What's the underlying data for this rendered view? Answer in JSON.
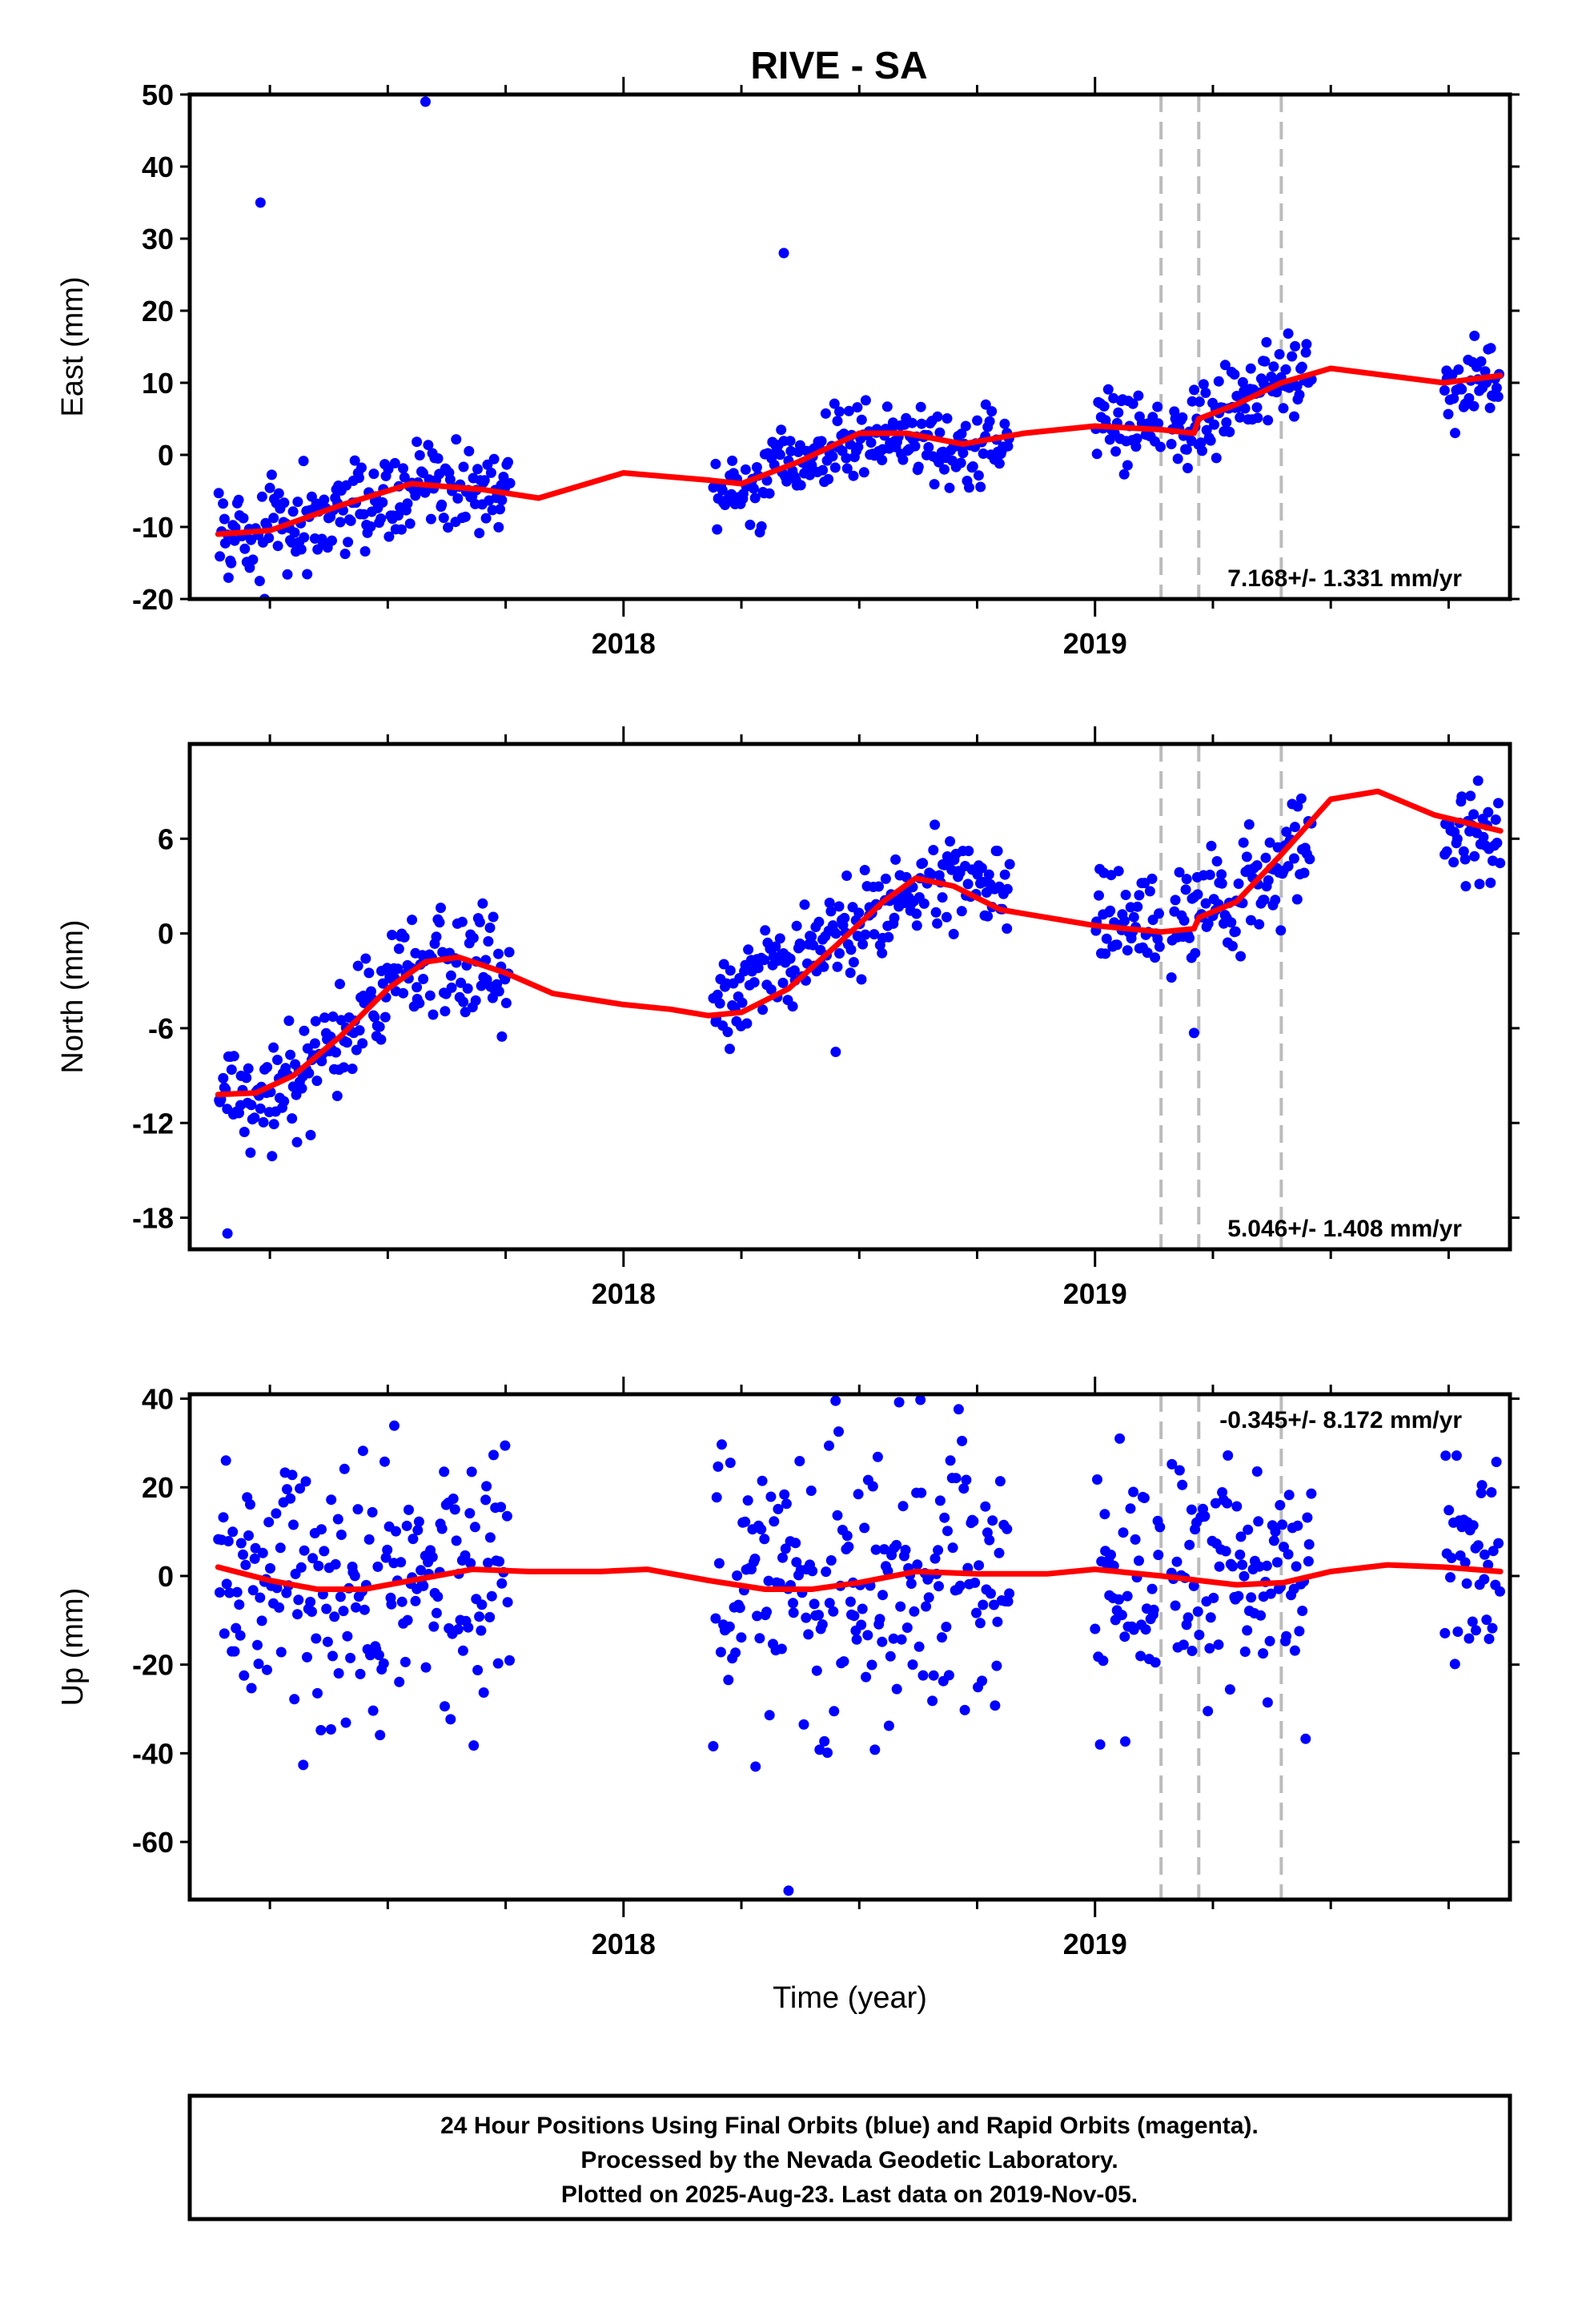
{
  "title": "RIVE - SA",
  "footer": {
    "line1": "24 Hour Positions Using Final Orbits (blue) and Rapid Orbits (magenta).",
    "line2": "Processed by the Nevada Geodetic Laboratory.",
    "line3": "Plotted on 2025-Aug-23. Last data on 2019-Nov-05."
  },
  "colors": {
    "points": "#0000ff",
    "fit": "#ff0000",
    "breaks": "#bbbbbb",
    "frame": "#000000"
  },
  "chart_data": [
    {
      "type": "scatter",
      "panel": "east",
      "title": "RIVE - SA",
      "xlabel": "",
      "ylabel": "East (mm)",
      "xlim": [
        2017.08,
        2019.88
      ],
      "ylim": [
        -20,
        50
      ],
      "x_ticks": [
        {
          "value": 2018,
          "label": "2018"
        },
        {
          "value": 2019,
          "label": "2019"
        }
      ],
      "x_minor_ticks": [
        2017.25,
        2017.5,
        2017.75,
        2018.25,
        2018.5,
        2018.75,
        2019.25,
        2019.5,
        2019.75
      ],
      "y_ticks": [
        -20,
        -10,
        0,
        10,
        20,
        30,
        40,
        50
      ],
      "rate": "7.168+/- 1.331 mm/yr",
      "rate_position": "bottom-right",
      "breaks": [
        2019.14,
        2019.22,
        2019.395
      ],
      "outliers": [
        [
          2017.23,
          35
        ],
        [
          2017.58,
          49
        ],
        [
          2018.34,
          28
        ]
      ],
      "segments": [
        {
          "start": 2017.14,
          "end": 2017.76,
          "trend": [
            [
              2017.14,
              -11
            ],
            [
              2017.3,
              -10
            ],
            [
              2017.45,
              -7
            ],
            [
              2017.6,
              -4
            ],
            [
              2017.76,
              -6
            ]
          ],
          "scatter": 3.2
        },
        {
          "start": 2018.19,
          "end": 2018.82,
          "trend": [
            [
              2018.19,
              -6
            ],
            [
              2018.35,
              -2
            ],
            [
              2018.5,
              3
            ],
            [
              2018.7,
              1
            ],
            [
              2018.82,
              2
            ]
          ],
          "scatter": 2.8
        },
        {
          "start": 2019.0,
          "end": 2019.14,
          "trend": [
            [
              2019.0,
              4
            ],
            [
              2019.14,
              4
            ]
          ],
          "scatter": 2.5
        },
        {
          "start": 2019.16,
          "end": 2019.46,
          "trend": [
            [
              2019.16,
              3
            ],
            [
              2019.3,
              7
            ],
            [
              2019.46,
              12
            ]
          ],
          "scatter": 2.8
        },
        {
          "start": 2019.74,
          "end": 2019.86,
          "trend": [
            [
              2019.74,
              8
            ],
            [
              2019.86,
              11
            ]
          ],
          "scatter": 2.5
        }
      ],
      "fit": [
        [
          2017.14,
          -11
        ],
        [
          2017.25,
          -10.5
        ],
        [
          2017.4,
          -7
        ],
        [
          2017.55,
          -4
        ],
        [
          2017.7,
          -4.8
        ],
        [
          2017.82,
          -6
        ],
        [
          2018.0,
          -2.5
        ],
        [
          2018.18,
          -3.5
        ],
        [
          2018.25,
          -4
        ],
        [
          2018.37,
          -1
        ],
        [
          2018.5,
          3
        ],
        [
          2018.6,
          3
        ],
        [
          2018.72,
          1.5
        ],
        [
          2018.85,
          3
        ],
        [
          2019.0,
          4
        ],
        [
          2019.14,
          3.5
        ],
        [
          2019.21,
          3
        ],
        [
          2019.22,
          5
        ],
        [
          2019.3,
          7
        ],
        [
          2019.395,
          10
        ],
        [
          2019.5,
          12
        ],
        [
          2019.62,
          11
        ],
        [
          2019.74,
          10
        ],
        [
          2019.86,
          11
        ]
      ]
    },
    {
      "type": "scatter",
      "panel": "north",
      "xlabel": "",
      "ylabel": "North (mm)",
      "xlim": [
        2017.08,
        2019.88
      ],
      "ylim": [
        -20,
        12
      ],
      "x_ticks": [
        {
          "value": 2018,
          "label": "2018"
        },
        {
          "value": 2019,
          "label": "2019"
        }
      ],
      "x_minor_ticks": [
        2017.25,
        2017.5,
        2017.75,
        2018.25,
        2018.5,
        2018.75,
        2019.25,
        2019.5,
        2019.75
      ],
      "y_ticks": [
        -18,
        -12,
        -6,
        0,
        6
      ],
      "rate": "5.046+/- 1.408 mm/yr",
      "rate_position": "bottom-right",
      "breaks": [
        2019.14,
        2019.22,
        2019.395
      ],
      "outliers": [
        [
          2017.16,
          -19
        ],
        [
          2018.45,
          -7.5
        ],
        [
          2019.21,
          -6.3
        ]
      ],
      "segments": [
        {
          "start": 2017.14,
          "end": 2017.76,
          "trend": [
            [
              2017.14,
              -11
            ],
            [
              2017.28,
              -10
            ],
            [
              2017.4,
              -7
            ],
            [
              2017.52,
              -3
            ],
            [
              2017.62,
              -1
            ],
            [
              2017.76,
              -2
            ]
          ],
          "scatter": 1.7
        },
        {
          "start": 2018.19,
          "end": 2018.82,
          "trend": [
            [
              2018.19,
              -4
            ],
            [
              2018.3,
              -3
            ],
            [
              2018.45,
              0
            ],
            [
              2018.6,
              2.5
            ],
            [
              2018.7,
              3.5
            ],
            [
              2018.82,
              2
            ]
          ],
          "scatter": 1.5
        },
        {
          "start": 2019.0,
          "end": 2019.14,
          "trend": [
            [
              2019.0,
              1
            ],
            [
              2019.14,
              1
            ]
          ],
          "scatter": 1.6
        },
        {
          "start": 2019.16,
          "end": 2019.46,
          "trend": [
            [
              2019.16,
              0.5
            ],
            [
              2019.3,
              2
            ],
            [
              2019.46,
              6
            ]
          ],
          "scatter": 1.7
        },
        {
          "start": 2019.74,
          "end": 2019.86,
          "trend": [
            [
              2019.74,
              7
            ],
            [
              2019.86,
              6
            ]
          ],
          "scatter": 1.6
        }
      ],
      "fit": [
        [
          2017.14,
          -10.2
        ],
        [
          2017.22,
          -10.1
        ],
        [
          2017.3,
          -9
        ],
        [
          2017.4,
          -6.5
        ],
        [
          2017.5,
          -3.5
        ],
        [
          2017.58,
          -1.8
        ],
        [
          2017.65,
          -1.5
        ],
        [
          2017.75,
          -2.5
        ],
        [
          2017.85,
          -3.8
        ],
        [
          2018.0,
          -4.5
        ],
        [
          2018.1,
          -4.8
        ],
        [
          2018.18,
          -5.2
        ],
        [
          2018.25,
          -5
        ],
        [
          2018.35,
          -3.5
        ],
        [
          2018.45,
          -0.8
        ],
        [
          2018.55,
          2
        ],
        [
          2018.62,
          3.5
        ],
        [
          2018.7,
          3
        ],
        [
          2018.8,
          1.5
        ],
        [
          2018.9,
          1
        ],
        [
          2019.0,
          0.5
        ],
        [
          2019.14,
          0.1
        ],
        [
          2019.21,
          0.3
        ],
        [
          2019.22,
          1
        ],
        [
          2019.3,
          2
        ],
        [
          2019.395,
          5
        ],
        [
          2019.5,
          8.5
        ],
        [
          2019.6,
          9
        ],
        [
          2019.72,
          7.5
        ],
        [
          2019.86,
          6.5
        ]
      ]
    },
    {
      "type": "scatter",
      "panel": "up",
      "xlabel": "Time (year)",
      "ylabel": "Up (mm)",
      "xlim": [
        2017.08,
        2019.88
      ],
      "ylim": [
        -73,
        41
      ],
      "x_ticks": [
        {
          "value": 2018,
          "label": "2018"
        },
        {
          "value": 2019,
          "label": "2019"
        }
      ],
      "x_minor_ticks": [
        2017.25,
        2017.5,
        2017.75,
        2018.25,
        2018.5,
        2018.75,
        2019.25,
        2019.5,
        2019.75
      ],
      "y_ticks": [
        -60,
        -40,
        -20,
        0,
        20,
        40
      ],
      "rate": "-0.345+/- 8.172 mm/yr",
      "rate_position": "top-right",
      "breaks": [
        2019.14,
        2019.22,
        2019.395
      ],
      "outliers": [
        [
          2018.35,
          -71
        ],
        [
          2018.28,
          -43
        ]
      ],
      "segments": [
        {
          "start": 2017.14,
          "end": 2017.76,
          "trend": [
            [
              2017.14,
              2
            ],
            [
              2017.45,
              -3
            ],
            [
              2017.76,
              2
            ]
          ],
          "scatter": 15
        },
        {
          "start": 2018.19,
          "end": 2018.82,
          "trend": [
            [
              2018.19,
              -3
            ],
            [
              2018.35,
              -4
            ],
            [
              2018.6,
              1
            ],
            [
              2018.82,
              1
            ]
          ],
          "scatter": 15
        },
        {
          "start": 2019.0,
          "end": 2019.14,
          "trend": [
            [
              2019.0,
              2
            ],
            [
              2019.14,
              2
            ]
          ],
          "scatter": 16
        },
        {
          "start": 2019.16,
          "end": 2019.46,
          "trend": [
            [
              2019.16,
              0
            ],
            [
              2019.46,
              -2
            ]
          ],
          "scatter": 12
        },
        {
          "start": 2019.74,
          "end": 2019.86,
          "trend": [
            [
              2019.74,
              2
            ],
            [
              2019.86,
              1
            ]
          ],
          "scatter": 13
        }
      ],
      "fit": [
        [
          2017.14,
          2
        ],
        [
          2017.25,
          -1
        ],
        [
          2017.35,
          -3
        ],
        [
          2017.45,
          -3
        ],
        [
          2017.55,
          -1
        ],
        [
          2017.68,
          1.5
        ],
        [
          2017.8,
          1
        ],
        [
          2017.95,
          1
        ],
        [
          2018.05,
          1.5
        ],
        [
          2018.18,
          -1
        ],
        [
          2018.3,
          -3
        ],
        [
          2018.4,
          -3
        ],
        [
          2018.5,
          -1.5
        ],
        [
          2018.62,
          1
        ],
        [
          2018.75,
          0.5
        ],
        [
          2018.9,
          0.5
        ],
        [
          2019.0,
          1.5
        ],
        [
          2019.14,
          0
        ],
        [
          2019.22,
          -1
        ],
        [
          2019.3,
          -2
        ],
        [
          2019.4,
          -1.5
        ],
        [
          2019.5,
          1
        ],
        [
          2019.62,
          2.5
        ],
        [
          2019.74,
          2
        ],
        [
          2019.86,
          1
        ]
      ]
    }
  ]
}
